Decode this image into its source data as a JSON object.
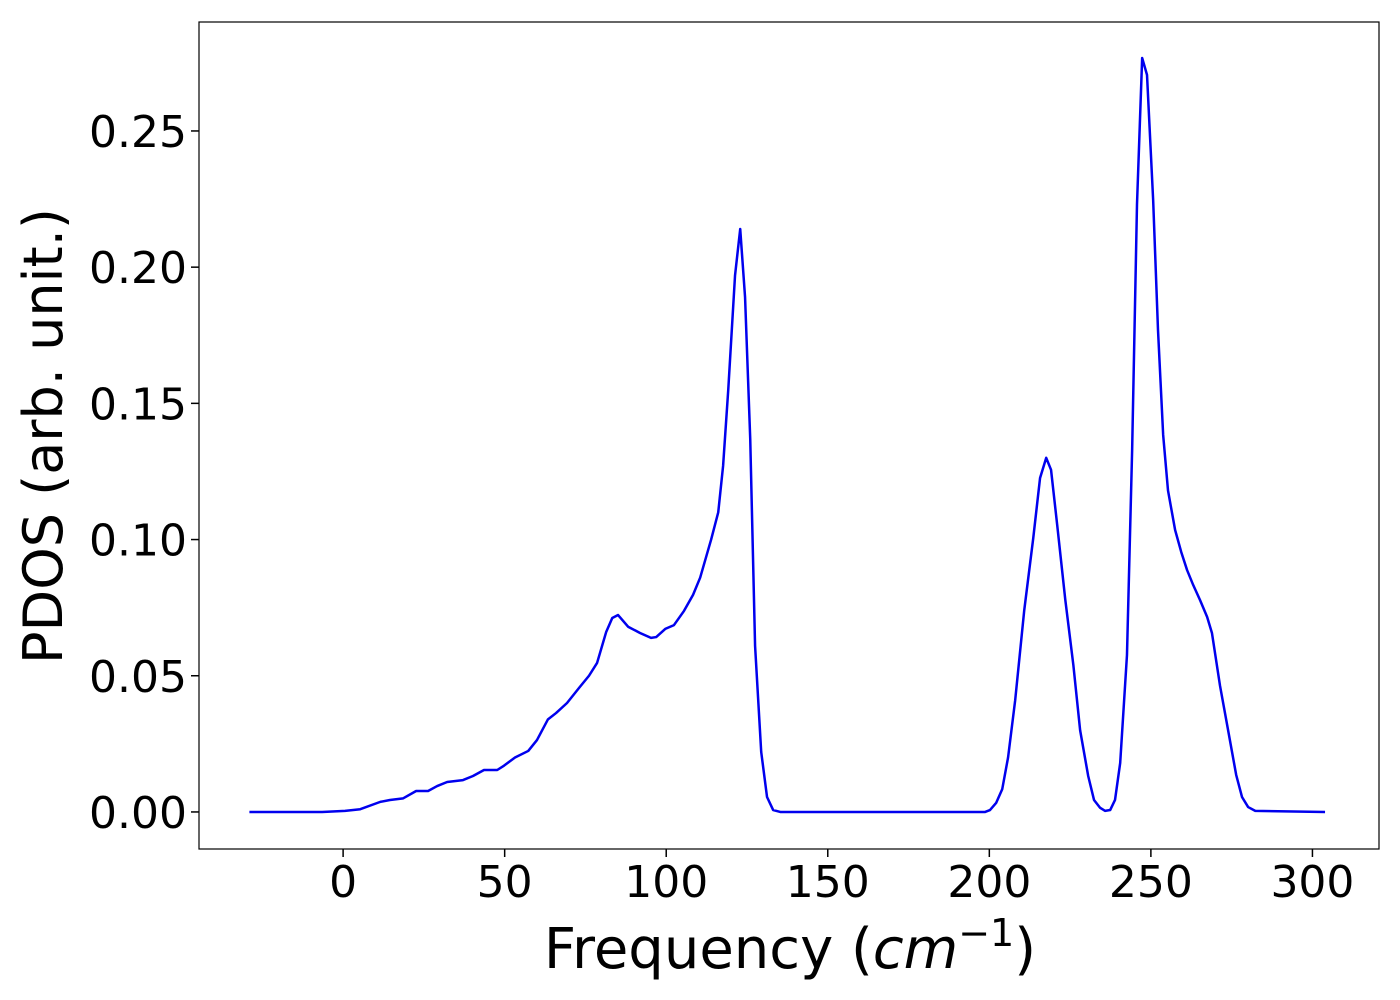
{
  "chart_data": {
    "type": "line",
    "x_label": [
      "Frequency (",
      "cm",
      "−1",
      ")"
    ],
    "y_label": "PDOS (arb. unit.)",
    "x": [
      -29,
      -6.5,
      0.6,
      5.3,
      11.5,
      14.5,
      18.6,
      22.6,
      26.3,
      29.1,
      32.2,
      37.1,
      40.2,
      43.6,
      47.7,
      49.8,
      53.2,
      57.3,
      60,
      63.4,
      65.9,
      69.3,
      73.0,
      76.1,
      78.6,
      81.4,
      83.3,
      85.1,
      88.2,
      91.9,
      95.3,
      96.9,
      99.7,
      102.4,
      105.5,
      108.3,
      110.5,
      113.9,
      116.1,
      117.6,
      119.2,
      121.3,
      122.9,
      124.4,
      126.0,
      127.5,
      129.4,
      131.2,
      133.1,
      135.3,
      198.7,
      200.2,
      202.1,
      204,
      205.8,
      208,
      210.8,
      213.6,
      215.7,
      217.6,
      219.1,
      221,
      223.5,
      226,
      228.1,
      230.6,
      232.4,
      234.3,
      235.8,
      237.4,
      238.9,
      240.5,
      242.6,
      244.2,
      245.7,
      247.3,
      248.8,
      250.7,
      252.2,
      253.8,
      255.3,
      257.5,
      259.4,
      261.2,
      263.1,
      265.2,
      267.4,
      268.9,
      271.4,
      273.9,
      276.4,
      278.2,
      280.1,
      282.3,
      303.9
    ],
    "series": [
      {
        "name": "PDOS",
        "color": "#0000ee",
        "values": [
          0,
          0,
          0.0004,
          0.001,
          0.0037,
          0.0044,
          0.005,
          0.0077,
          0.0077,
          0.0095,
          0.011,
          0.0117,
          0.0132,
          0.0154,
          0.0154,
          0.017,
          0.02,
          0.0224,
          0.0264,
          0.034,
          0.0363,
          0.04,
          0.0455,
          0.05,
          0.0547,
          0.066,
          0.0712,
          0.0723,
          0.068,
          0.0657,
          0.0639,
          0.0642,
          0.0672,
          0.0686,
          0.0738,
          0.0797,
          0.086,
          0.1,
          0.11,
          0.127,
          0.155,
          0.197,
          0.214,
          0.189,
          0.137,
          0.061,
          0.022,
          0.0055,
          0.0007,
          0,
          0,
          0.0007,
          0.0033,
          0.0084,
          0.02,
          0.041,
          0.074,
          0.1006,
          0.1226,
          0.13,
          0.1256,
          0.1054,
          0.078,
          0.054,
          0.03,
          0.0132,
          0.0044,
          0.0015,
          0.0004,
          0.0007,
          0.0044,
          0.018,
          0.0576,
          0.133,
          0.223,
          0.2768,
          0.2706,
          0.2247,
          0.177,
          0.1384,
          0.118,
          0.1035,
          0.0954,
          0.0888,
          0.0833,
          0.0778,
          0.0716,
          0.0657,
          0.0463,
          0.03,
          0.0136,
          0.0055,
          0.0018,
          0.0004,
          0
        ]
      }
    ],
    "xlim": [
      -44.6,
      320.6
    ],
    "ylim": [
      -0.0136,
      0.29
    ],
    "xticks": [
      0,
      50,
      100,
      150,
      200,
      250,
      300
    ],
    "yticks": [
      {
        "value": 0,
        "label": "0.00"
      },
      {
        "value": 0.05,
        "label": "0.05"
      },
      {
        "value": 0.1,
        "label": "0.10"
      },
      {
        "value": 0.15,
        "label": "0.15"
      },
      {
        "value": 0.2,
        "label": "0.20"
      },
      {
        "value": 0.25,
        "label": "0.25"
      }
    ],
    "grid": false
  }
}
